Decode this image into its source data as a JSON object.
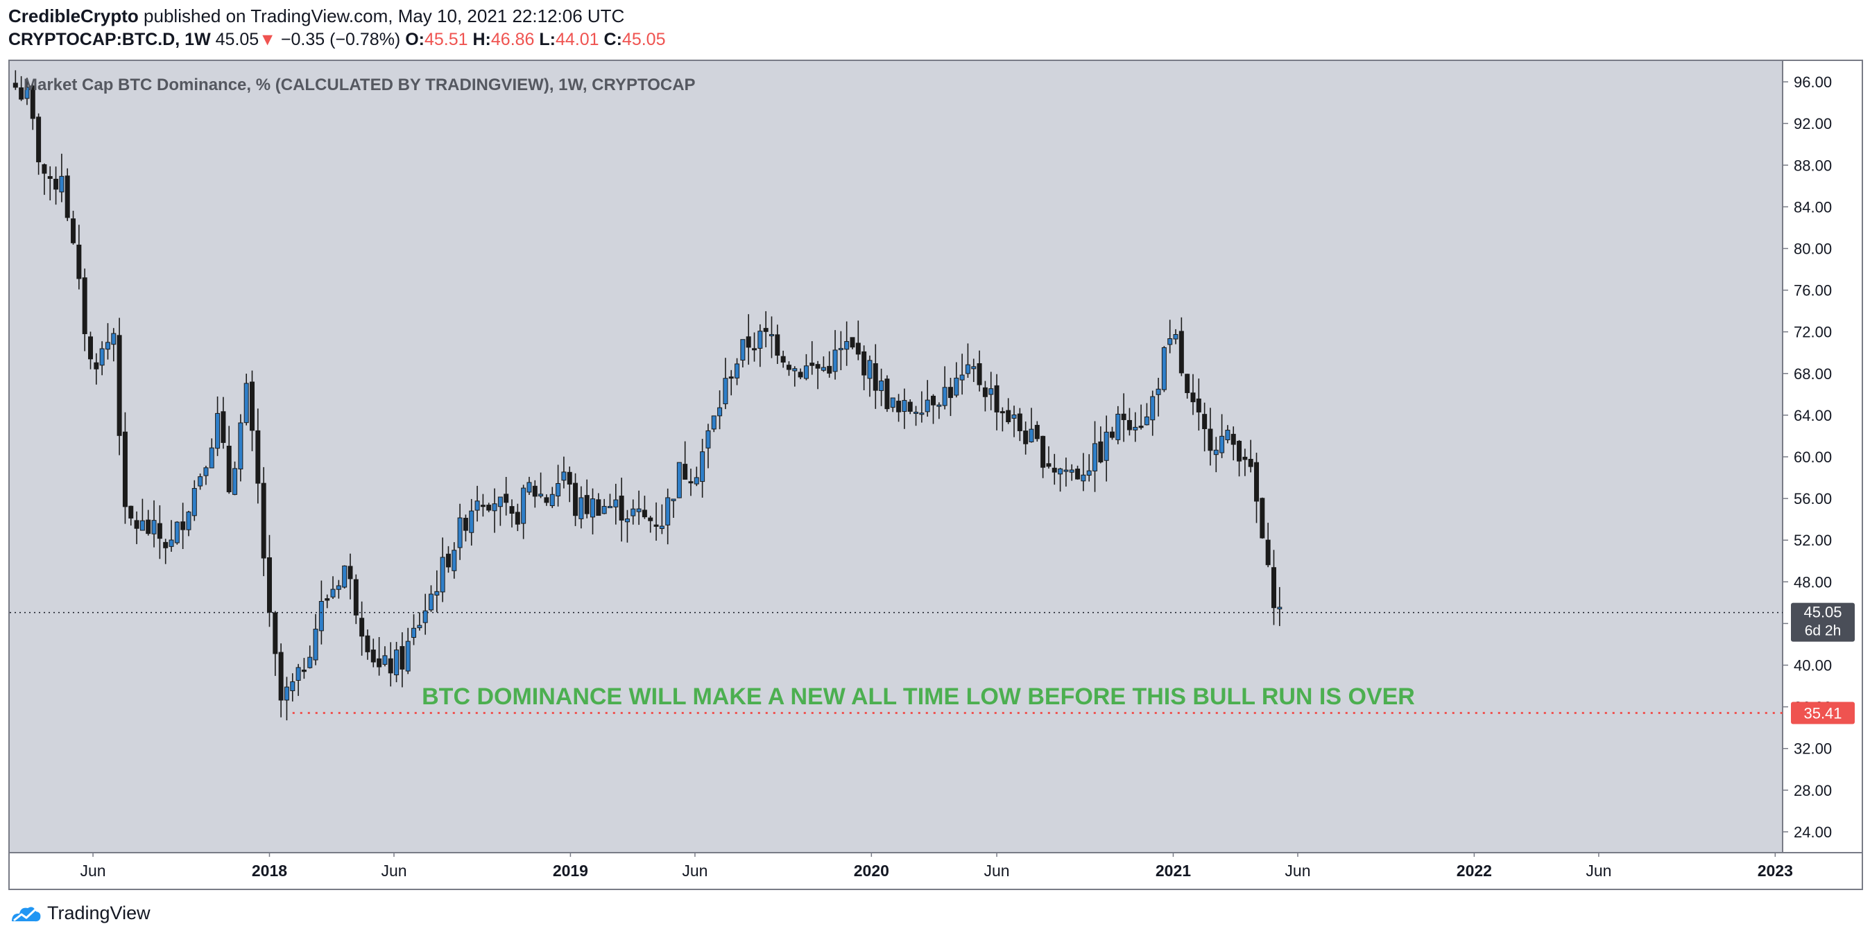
{
  "header": {
    "author": "CredibleCrypto",
    "published_text": "published on TradingView.com, May 10, 2021 22:12:06 UTC",
    "symbol": "CRYPTOCAP:BTC.D, 1W",
    "last": "45.05",
    "down_arrow": "▼",
    "change": "−0.35 (−0.78%)",
    "o_label": "O:",
    "o_value": "45.51",
    "h_label": "H:",
    "h_value": "46.86",
    "l_label": "L:",
    "l_value": "44.01",
    "c_label": "C:",
    "c_value": "45.05"
  },
  "footer": {
    "brand": "TradingView",
    "logo_icon": "tradingview-cloud-icon"
  },
  "colors": {
    "up": "#2f7fc9",
    "down": "#1b1b1b",
    "background": "#d1d4dc",
    "annotation": "#4caf50",
    "level_line": "#ef5350"
  },
  "chart_data": {
    "type": "candlestick",
    "title": "Market Cap BTC Dominance, % (CALCULATED BY TRADINGVIEW), 1W, CRYPTOCAP",
    "interval": "1W",
    "ylim": [
      22,
      98
    ],
    "y_ticks": [
      "96.00",
      "92.00",
      "88.00",
      "84.00",
      "80.00",
      "76.00",
      "72.00",
      "68.00",
      "64.00",
      "60.00",
      "56.00",
      "52.00",
      "48.00",
      "44.00",
      "40.00",
      "36.00",
      "32.00",
      "28.00",
      "24.00"
    ],
    "x_ticks": [
      {
        "label": "Jun",
        "bold": false,
        "date": "2017-06-01"
      },
      {
        "label": "2018",
        "bold": true,
        "date": "2018-01-01"
      },
      {
        "label": "Jun",
        "bold": false,
        "date": "2018-06-01"
      },
      {
        "label": "2019",
        "bold": true,
        "date": "2019-01-01"
      },
      {
        "label": "Jun",
        "bold": false,
        "date": "2019-06-01"
      },
      {
        "label": "2020",
        "bold": true,
        "date": "2020-01-01"
      },
      {
        "label": "Jun",
        "bold": false,
        "date": "2020-06-01"
      },
      {
        "label": "2021",
        "bold": true,
        "date": "2021-01-01"
      },
      {
        "label": "Jun",
        "bold": false,
        "date": "2021-06-01"
      },
      {
        "label": "2022",
        "bold": true,
        "date": "2022-01-01"
      },
      {
        "label": "Jun",
        "bold": false,
        "date": "2022-06-01"
      },
      {
        "label": "2023",
        "bold": true,
        "date": "2023-01-01"
      }
    ],
    "x_range": [
      "2017-02-20",
      "2023-01-10"
    ],
    "keypoints": [
      [
        "2017-02-27",
        95.5
      ],
      [
        "2017-03-13",
        94.5
      ],
      [
        "2017-03-27",
        89.0
      ],
      [
        "2017-04-10",
        85.5
      ],
      [
        "2017-04-24",
        87.5
      ],
      [
        "2017-05-15",
        76.0
      ],
      [
        "2017-05-29",
        69.0
      ],
      [
        "2017-06-12",
        70.0
      ],
      [
        "2017-06-26",
        72.0
      ],
      [
        "2017-07-10",
        54.0
      ],
      [
        "2017-08-07",
        53.0
      ],
      [
        "2017-09-04",
        51.5
      ],
      [
        "2017-10-02",
        57.0
      ],
      [
        "2017-10-30",
        63.5
      ],
      [
        "2017-11-13",
        57.0
      ],
      [
        "2017-12-04",
        66.0
      ],
      [
        "2017-12-18",
        57.0
      ],
      [
        "2018-01-01",
        44.0
      ],
      [
        "2018-01-15",
        36.5
      ],
      [
        "2018-02-05",
        38.5
      ],
      [
        "2018-03-05",
        45.5
      ],
      [
        "2018-04-02",
        49.5
      ],
      [
        "2018-04-23",
        44.0
      ],
      [
        "2018-05-14",
        39.5
      ],
      [
        "2018-06-11",
        40.5
      ],
      [
        "2018-07-09",
        45.5
      ],
      [
        "2018-08-06",
        50.5
      ],
      [
        "2018-09-10",
        56.5
      ],
      [
        "2018-10-01",
        56.0
      ],
      [
        "2018-10-22",
        53.5
      ],
      [
        "2018-11-12",
        57.0
      ],
      [
        "2018-12-03",
        56.0
      ],
      [
        "2018-12-24",
        58.5
      ],
      [
        "2019-01-07",
        55.0
      ],
      [
        "2019-02-04",
        55.5
      ],
      [
        "2019-03-04",
        55.0
      ],
      [
        "2019-04-01",
        54.0
      ],
      [
        "2019-04-22",
        54.0
      ],
      [
        "2019-05-13",
        58.5
      ],
      [
        "2019-06-03",
        59.0
      ],
      [
        "2019-06-24",
        63.5
      ],
      [
        "2019-07-15",
        68.5
      ],
      [
        "2019-08-05",
        71.0
      ],
      [
        "2019-09-02",
        71.5
      ],
      [
        "2019-09-30",
        68.5
      ],
      [
        "2019-11-04",
        68.5
      ],
      [
        "2019-12-02",
        70.5
      ],
      [
        "2019-12-23",
        69.0
      ],
      [
        "2020-01-13",
        66.5
      ],
      [
        "2020-02-03",
        64.0
      ],
      [
        "2020-03-02",
        65.5
      ],
      [
        "2020-04-06",
        66.5
      ],
      [
        "2020-05-04",
        68.0
      ],
      [
        "2020-05-25",
        66.0
      ],
      [
        "2020-06-08",
        64.5
      ],
      [
        "2020-07-13",
        61.5
      ],
      [
        "2020-08-10",
        59.0
      ],
      [
        "2020-09-07",
        58.5
      ],
      [
        "2020-10-05",
        60.5
      ],
      [
        "2020-11-02",
        64.0
      ],
      [
        "2020-11-30",
        63.5
      ],
      [
        "2020-12-21",
        69.5
      ],
      [
        "2021-01-04",
        71.0
      ],
      [
        "2021-01-18",
        65.5
      ],
      [
        "2021-02-08",
        62.0
      ],
      [
        "2021-03-08",
        61.5
      ],
      [
        "2021-03-29",
        60.5
      ],
      [
        "2021-04-12",
        55.5
      ],
      [
        "2021-04-26",
        48.5
      ],
      [
        "2021-05-10",
        45.05
      ]
    ],
    "last_price": {
      "value": "45.05",
      "countdown": "6d 2h"
    },
    "support_line": {
      "value": "35.41",
      "from": "2018-01-29"
    },
    "annotation": "BTC DOMINANCE WILL MAKE A NEW ALL TIME LOW BEFORE THIS BULL RUN IS OVER"
  }
}
